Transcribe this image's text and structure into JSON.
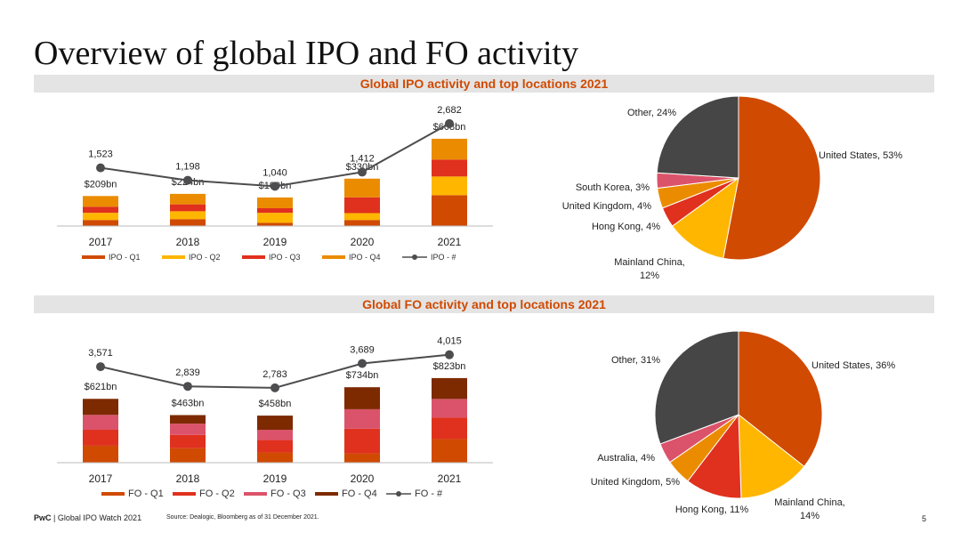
{
  "page": {
    "title": "Overview of global IPO and FO activity",
    "footer_brand": "PwC",
    "footer_text": " | Global IPO Watch 2021",
    "source": "Source: Dealogic, Bloomberg as of 31 December 2021.",
    "page_number": "5"
  },
  "colors": {
    "q1": "#d04a02",
    "q2": "#ffb600",
    "q3": "#e0301e",
    "q4": "#eb8c00",
    "fo_q3": "#db536a",
    "fo_q4": "#7d2a00",
    "line": "#4d4d4f",
    "other": "#464646"
  },
  "chart_data": [
    {
      "id": "ipo-bar",
      "type": "bar",
      "title": "Global IPO activity and top locations 2021",
      "categories": [
        "2017",
        "2018",
        "2019",
        "2020",
        "2021"
      ],
      "value_labels": [
        "$209bn",
        "$224bn",
        "$199bn",
        "$330bn",
        "$608bn"
      ],
      "totals": [
        209,
        224,
        199,
        330,
        608
      ],
      "series": [
        {
          "name": "IPO - Q1",
          "values": [
            42,
            48,
            22,
            42,
            215
          ]
        },
        {
          "name": "IPO - Q2",
          "values": [
            50,
            55,
            70,
            48,
            130
          ]
        },
        {
          "name": "IPO - Q3",
          "values": [
            42,
            48,
            32,
            110,
            118
          ]
        },
        {
          "name": "IPO - Q4",
          "values": [
            75,
            73,
            75,
            130,
            145
          ]
        }
      ],
      "line": {
        "name": "IPO - #",
        "values": [
          1523,
          1198,
          1040,
          1412,
          2682
        ],
        "labels": [
          "1,523",
          "1,198",
          "1,040",
          "1,412",
          "2,682"
        ]
      },
      "ylim": [
        0,
        620
      ],
      "line_ylim": [
        0,
        2750
      ]
    },
    {
      "id": "ipo-pie",
      "type": "pie",
      "title": "Global IPO activity top locations 2021",
      "slices": [
        {
          "label": "United States, 53%",
          "value": 53
        },
        {
          "label": "Mainland China, 12%",
          "value": 12
        },
        {
          "label": "Hong Kong, 4%",
          "value": 4
        },
        {
          "label": "United Kingdom, 4%",
          "value": 4
        },
        {
          "label": "South Korea, 3%",
          "value": 3
        },
        {
          "label": "Other, 24%",
          "value": 24
        }
      ]
    },
    {
      "id": "fo-bar",
      "type": "bar",
      "title": "Global FO activity and top locations 2021",
      "categories": [
        "2017",
        "2018",
        "2019",
        "2020",
        "2021"
      ],
      "value_labels": [
        "$621bn",
        "$463bn",
        "$458bn",
        "$734bn",
        "$823bn"
      ],
      "totals": [
        621,
        463,
        458,
        734,
        823
      ],
      "series": [
        {
          "name": "FO - Q1",
          "values": [
            165,
            140,
            100,
            90,
            230
          ]
        },
        {
          "name": "FO - Q2",
          "values": [
            155,
            130,
            120,
            240,
            210
          ]
        },
        {
          "name": "FO - Q3",
          "values": [
            145,
            110,
            100,
            190,
            180
          ]
        },
        {
          "name": "FO - Q4",
          "values": [
            156,
            83,
            138,
            214,
            203
          ]
        }
      ],
      "line": {
        "name": "FO - #",
        "values": [
          3571,
          2839,
          2783,
          3689,
          4015
        ],
        "labels": [
          "3,571",
          "2,839",
          "2,783",
          "3,689",
          "4,015"
        ]
      },
      "ylim": [
        0,
        900
      ],
      "line_ylim": [
        0,
        4500
      ]
    },
    {
      "id": "fo-pie",
      "type": "pie",
      "title": "Global FO activity top locations 2021",
      "slices": [
        {
          "label": "United States, 36%",
          "value": 36
        },
        {
          "label": "Mainland China, 14%",
          "value": 14
        },
        {
          "label": "Hong Kong, 11%",
          "value": 11
        },
        {
          "label": "United Kingdom, 5%",
          "value": 5
        },
        {
          "label": "Australia, 4%",
          "value": 4
        },
        {
          "label": "Other, 31%",
          "value": 31
        }
      ]
    }
  ]
}
